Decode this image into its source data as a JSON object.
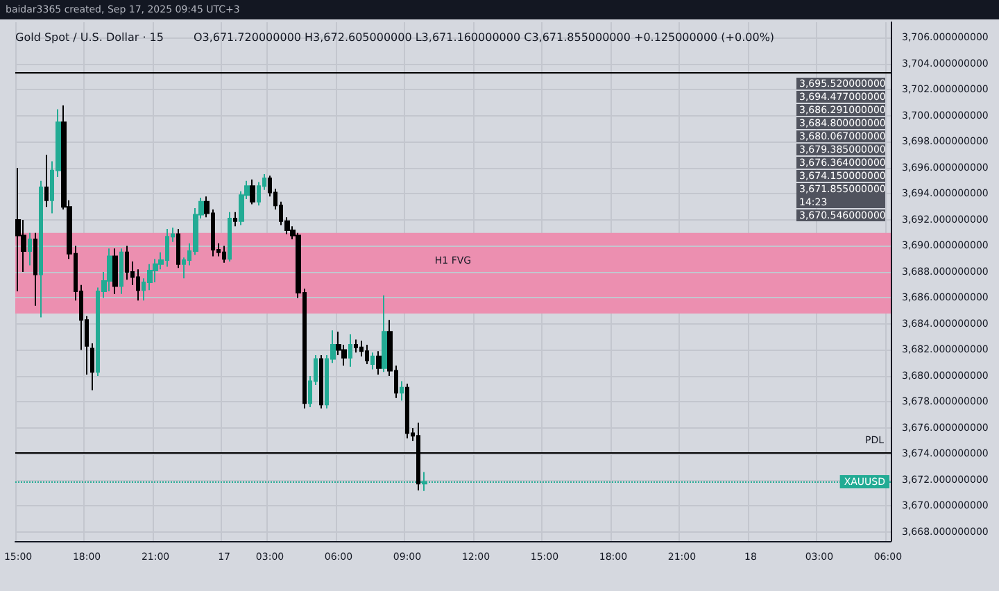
{
  "chart_data": {
    "type": "candlestick",
    "title": "Gold Spot / U.S. Dollar · 15",
    "subtitle": "O3,671.720000000 H3,672.605000000 L3,671.160000000 C3,671.855000000 +0.125000000 (+0.00%)",
    "annotations": [
      "baidar3365 created, Sep 17, 2025 09:45 UTC+3",
      "3,695.520000000",
      "3,694.477000000",
      "3,686.291000000",
      "3,684.800000000",
      "3,680.067000000",
      "3,679.385000000",
      "3,676.364000000",
      "3,674.150000000",
      "3,671.855000000\n14:23",
      "3,670.546000000"
    ],
    "categories": [
      "15:00",
      null,
      null,
      null,
      null,
      null,
      null,
      null,
      null,
      null,
      null,
      null,
      "18:00",
      null,
      null,
      null,
      null,
      null,
      null,
      null,
      null,
      null,
      null,
      null,
      "21:00",
      null,
      null,
      null,
      null,
      null,
      null,
      null,
      null,
      null,
      null,
      null,
      "17",
      null,
      null,
      null,
      null,
      null,
      null,
      null,
      "03:00",
      null,
      null,
      null,
      null,
      null,
      null,
      null,
      null,
      null,
      null,
      null,
      "06:00",
      null,
      null,
      null,
      null,
      null,
      null,
      null,
      null,
      null,
      null,
      null,
      "09:00",
      null,
      null,
      null,
      null,
      null,
      null,
      null,
      null,
      null,
      null,
      null,
      "12:00",
      null,
      null,
      null,
      null,
      null,
      null,
      null,
      null,
      null,
      null,
      null,
      "15:00",
      null,
      null,
      null,
      null,
      null,
      null,
      null,
      null,
      null,
      null,
      null,
      "18:00",
      null,
      null,
      null,
      null,
      null,
      null,
      null,
      null,
      null,
      null,
      null,
      "21:00",
      null,
      null,
      null,
      null,
      null,
      null,
      null,
      null,
      null,
      null,
      null,
      "18",
      null,
      null,
      null,
      null,
      null,
      null,
      null,
      null,
      null,
      null,
      null,
      "03:00",
      null,
      null,
      null,
      null,
      null,
      null,
      null,
      null,
      null,
      null,
      null,
      "06:00"
    ],
    "series": [
      {
        "name": "XAUUSD",
        "color": "#22ab94",
        "colors": [
          "#000000",
          "#000000",
          "#22ab94",
          "#000000",
          "#22ab94",
          "#000000",
          "#22ab94",
          "#22ab94",
          "#000000",
          "#000000",
          "#000000",
          "#000000",
          "#000000",
          "#000000",
          "#22ab94",
          "#22ab94",
          "#22ab94",
          "#000000",
          "#22ab94",
          "#000000",
          "#000000",
          "#000000",
          "#22ab94",
          "#22ab94",
          "#22ab94",
          "#22ab94",
          "#22ab94",
          "#22ab94",
          "#000000",
          "#22ab94",
          "#22ab94",
          "#22ab94",
          "#22ab94",
          "#000000",
          "#000000",
          "#000000",
          "#000000",
          "#22ab94",
          "#000000",
          "#22ab94",
          "#22ab94",
          "#000000",
          "#22ab94",
          "#22ab94",
          "#000000",
          "#000000",
          "#000000",
          "#000000",
          "#000000",
          "#000000",
          "#000000",
          "#22ab94",
          "#22ab94",
          "#000000",
          "#22ab94",
          "#22ab94",
          "#000000",
          "#000000",
          "#22ab94",
          "#000000",
          "#000000",
          "#000000",
          "#22ab94",
          "#000000",
          "#22ab94",
          "#000000",
          "#000000",
          "#22ab94",
          "#000000",
          "#000000",
          "#000000",
          "#22ab94",
          null,
          null,
          null,
          null,
          null,
          null,
          null,
          null,
          null,
          null,
          null,
          null,
          null,
          null,
          null,
          null,
          null,
          null,
          null,
          null,
          null,
          null,
          null,
          null,
          null,
          null,
          null,
          null,
          null,
          null,
          null,
          null,
          null,
          null,
          null,
          null,
          null,
          null,
          null,
          null,
          null,
          null,
          null,
          null,
          null,
          null,
          null,
          null,
          null,
          null,
          null,
          null,
          null,
          null,
          null,
          null,
          null,
          null,
          null,
          null,
          null,
          null,
          null,
          null,
          null,
          null,
          null,
          null,
          null,
          null,
          null,
          null,
          null,
          null,
          null,
          null,
          null,
          null,
          null,
          null,
          null
        ],
        "ohlc": [
          [
            3692,
            3696,
            3686.5,
            3690.8
          ],
          [
            3690.8,
            3692,
            3688,
            3689.6
          ],
          [
            3689.6,
            3691,
            3688.5,
            3690.5
          ],
          [
            3690.5,
            3691,
            3685.4,
            3687.8
          ],
          [
            3687.8,
            3695,
            3684.5,
            3694.5
          ],
          [
            3694.5,
            3697,
            3693,
            3693.5
          ],
          [
            3693.5,
            3696.5,
            3692.5,
            3695.8
          ],
          [
            3695.8,
            3700.5,
            3695.3,
            3699.5
          ],
          [
            3699.5,
            3700.8,
            3692.8,
            3693
          ],
          [
            3693,
            3693.5,
            3689,
            3689.4
          ],
          [
            3689.4,
            3690,
            3685.8,
            3686.5
          ],
          [
            3686.5,
            3687,
            3682,
            3684.3
          ],
          [
            3684.3,
            3684.6,
            3680.1,
            3682.3
          ],
          [
            3682.1,
            3682.5,
            3678.9,
            3680.3
          ],
          [
            3680.3,
            3686.8,
            3680,
            3686.5
          ],
          [
            3686.5,
            3688,
            3686,
            3687.3
          ],
          [
            3687.3,
            3689.8,
            3686.5,
            3689.2
          ],
          [
            3689.2,
            3689.8,
            3686.3,
            3686.9
          ],
          [
            3686.9,
            3689.8,
            3686.3,
            3689.5
          ],
          [
            3689.5,
            3690,
            3687.4,
            3688
          ],
          [
            3688,
            3688.8,
            3687,
            3687.6
          ],
          [
            3687.6,
            3688.2,
            3685.8,
            3686.6
          ],
          [
            3686.6,
            3687.5,
            3685.8,
            3687.2
          ],
          [
            3687.2,
            3688.6,
            3686.6,
            3688.1
          ],
          [
            3688.1,
            3689,
            3687.2,
            3688.6
          ],
          [
            3688.6,
            3689.5,
            3688.2,
            3688.9
          ],
          [
            3688.9,
            3691.3,
            3688.4,
            3690.7
          ],
          [
            3690.7,
            3691.4,
            3690.3,
            3690.9
          ],
          [
            3690.9,
            3691.3,
            3688.3,
            3688.6
          ],
          [
            3688.6,
            3689.1,
            3687.5,
            3688.9
          ],
          [
            3688.9,
            3690.2,
            3688.5,
            3689.6
          ],
          [
            3689.6,
            3692.9,
            3689.3,
            3692.4
          ],
          [
            3692.4,
            3693.7,
            3692.1,
            3693.4
          ],
          [
            3693.4,
            3693.8,
            3692.2,
            3692.5
          ],
          [
            3692.5,
            3692.8,
            3689.2,
            3689.7
          ],
          [
            3689.7,
            3690.2,
            3689.2,
            3689.5
          ],
          [
            3689.5,
            3690,
            3688.7,
            3689
          ],
          [
            3689,
            3692.6,
            3688.8,
            3692.1
          ],
          [
            3692.1,
            3692.6,
            3691.5,
            3691.9
          ],
          [
            3691.9,
            3694.2,
            3691.6,
            3693.9
          ],
          [
            3693.9,
            3695,
            3693.6,
            3694.6
          ],
          [
            3694.6,
            3695.1,
            3693.2,
            3693.4
          ],
          [
            3693.4,
            3694.9,
            3693.1,
            3694.6
          ],
          [
            3694.6,
            3695.52,
            3694.3,
            3695.2
          ],
          [
            3695.2,
            3695.4,
            3693.8,
            3694.1
          ],
          [
            3694.1,
            3694.4,
            3692.8,
            3693.1
          ],
          [
            3693.1,
            3693.4,
            3691.6,
            3691.9
          ],
          [
            3691.9,
            3692.2,
            3690.9,
            3691.2
          ],
          [
            3691.2,
            3691.5,
            3690.5,
            3690.8
          ],
          [
            3690.8,
            3691,
            3686,
            3686.4
          ],
          [
            3686.4,
            3686.7,
            3677.5,
            3677.9
          ],
          [
            3677.9,
            3680,
            3677.6,
            3679.6
          ],
          [
            3679.6,
            3681.6,
            3679.3,
            3681.3
          ],
          [
            3681.3,
            3681.6,
            3677.5,
            3677.8
          ],
          [
            3677.8,
            3681.6,
            3677.5,
            3681.3
          ],
          [
            3681.3,
            3683.5,
            3681,
            3682.4
          ],
          [
            3682.4,
            3683.4,
            3681.6,
            3682
          ],
          [
            3682,
            3682.4,
            3680.8,
            3681.4
          ],
          [
            3681.4,
            3683.2,
            3680.7,
            3682.4
          ],
          [
            3682.4,
            3682.8,
            3681.8,
            3682.2
          ],
          [
            3682.2,
            3682.7,
            3681.5,
            3681.9
          ],
          [
            3681.9,
            3682.4,
            3680.9,
            3681.2
          ],
          [
            3680.9,
            3681.8,
            3680.5,
            3681.5
          ],
          [
            3681.5,
            3681.9,
            3680.1,
            3680.6
          ],
          [
            3680.6,
            3686.2,
            3680.3,
            3683.4
          ],
          [
            3683.4,
            3684.3,
            3680,
            3680.4
          ],
          [
            3680.4,
            3680.8,
            3678.3,
            3678.7
          ],
          [
            3678.7,
            3679.6,
            3678.1,
            3679.1
          ],
          [
            3679.1,
            3679.4,
            3675.2,
            3675.6
          ],
          [
            3675.6,
            3676,
            3675,
            3675.4
          ],
          [
            3675.4,
            3676.4,
            3671.2,
            3671.72
          ],
          [
            3671.72,
            3672.605,
            3671.16,
            3671.855
          ],
          null,
          null,
          null,
          null,
          null,
          null,
          null,
          null,
          null,
          null,
          null,
          null,
          null,
          null,
          null,
          null,
          null,
          null,
          null,
          null,
          null,
          null,
          null,
          null,
          null,
          null,
          null,
          null,
          null,
          null,
          null,
          null,
          null,
          null,
          null,
          null,
          null,
          null,
          null,
          null,
          null,
          null,
          null,
          null,
          null,
          null,
          null,
          null,
          null,
          null,
          null,
          null,
          null,
          null,
          null,
          null,
          null,
          null,
          null,
          null,
          null,
          null,
          null,
          null,
          null,
          null,
          null,
          null,
          null,
          null,
          null,
          null,
          null,
          null,
          null,
          null,
          null,
          null,
          null,
          null,
          null
        ]
      }
    ],
    "ylim": [
      3667.3,
      3707.2
    ],
    "yticks": [
      {
        "value": 3668,
        "label": "3,668.000000000"
      },
      {
        "value": 3670,
        "label": "3,670.000000000"
      },
      {
        "value": 3672,
        "label": "3,672.000000000"
      },
      {
        "value": 3674,
        "label": "3,674.000000000"
      },
      {
        "value": 3676,
        "label": "3,676.000000000"
      },
      {
        "value": 3678,
        "label": "3,678.000000000"
      },
      {
        "value": 3680,
        "label": "3,680.000000000"
      },
      {
        "value": 3682,
        "label": "3,682.000000000"
      },
      {
        "value": 3684,
        "label": "3,684.000000000"
      },
      {
        "value": 3686,
        "label": "3,686.000000000"
      },
      {
        "value": 3688,
        "label": "3,688.000000000"
      },
      {
        "value": 3690,
        "label": "3,690.000000000"
      },
      {
        "value": 3692,
        "label": "3,692.000000000"
      },
      {
        "value": 3694,
        "label": "3,694.000000000"
      },
      {
        "value": 3696,
        "label": "3,696.000000000"
      },
      {
        "value": 3698,
        "label": "3,698.000000000"
      },
      {
        "value": 3700,
        "label": "3,700.000000000"
      },
      {
        "value": 3702,
        "label": "3,702.000000000"
      },
      {
        "value": 3704,
        "label": "3,704.000000000"
      },
      {
        "value": 3706,
        "label": "3,706.000000000"
      }
    ],
    "ref_lines": [
      {
        "axis": "y",
        "value": 3703.3,
        "color": "#000000"
      },
      {
        "axis": "y",
        "value": 3674.15,
        "label": "PDL",
        "color": "#000000"
      },
      {
        "axis": "y",
        "value": 3671.855,
        "color": "#22ab94",
        "line_style": "dotted"
      }
    ],
    "bands": [
      {
        "axis": "y",
        "from": 3684.8,
        "to": 3691,
        "label": "H1 FVG",
        "color": "#ec8fb0"
      }
    ],
    "grid": true
  }
}
